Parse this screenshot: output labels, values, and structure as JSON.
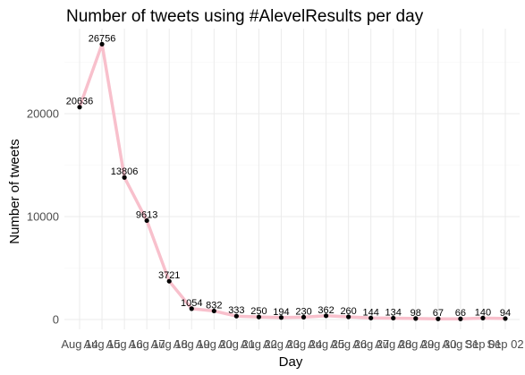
{
  "chart_data": {
    "type": "line",
    "title": "Number of tweets using #AlevelResults per day",
    "xlabel": "Day",
    "ylabel": "Number of tweets",
    "categories": [
      "Aug 14",
      "Aug 15",
      "Aug 16",
      "Aug 17",
      "Aug 18",
      "Aug 19",
      "Aug 20",
      "Aug 21",
      "Aug 22",
      "Aug 23",
      "Aug 24",
      "Aug 25",
      "Aug 26",
      "Aug 27",
      "Aug 28",
      "Aug 29",
      "Aug 30",
      "Aug 31",
      "Sep 01",
      "Sep 02"
    ],
    "values": [
      20636,
      26756,
      13806,
      9613,
      3721,
      1054,
      832,
      333,
      250,
      194,
      230,
      362,
      260,
      144,
      134,
      98,
      67,
      66,
      140,
      94
    ],
    "yticks": [
      0,
      10000,
      20000
    ],
    "ylim": [
      -500,
      28000
    ],
    "grid": true,
    "line_color": "#f8c0cc",
    "point_color": "#000000"
  }
}
